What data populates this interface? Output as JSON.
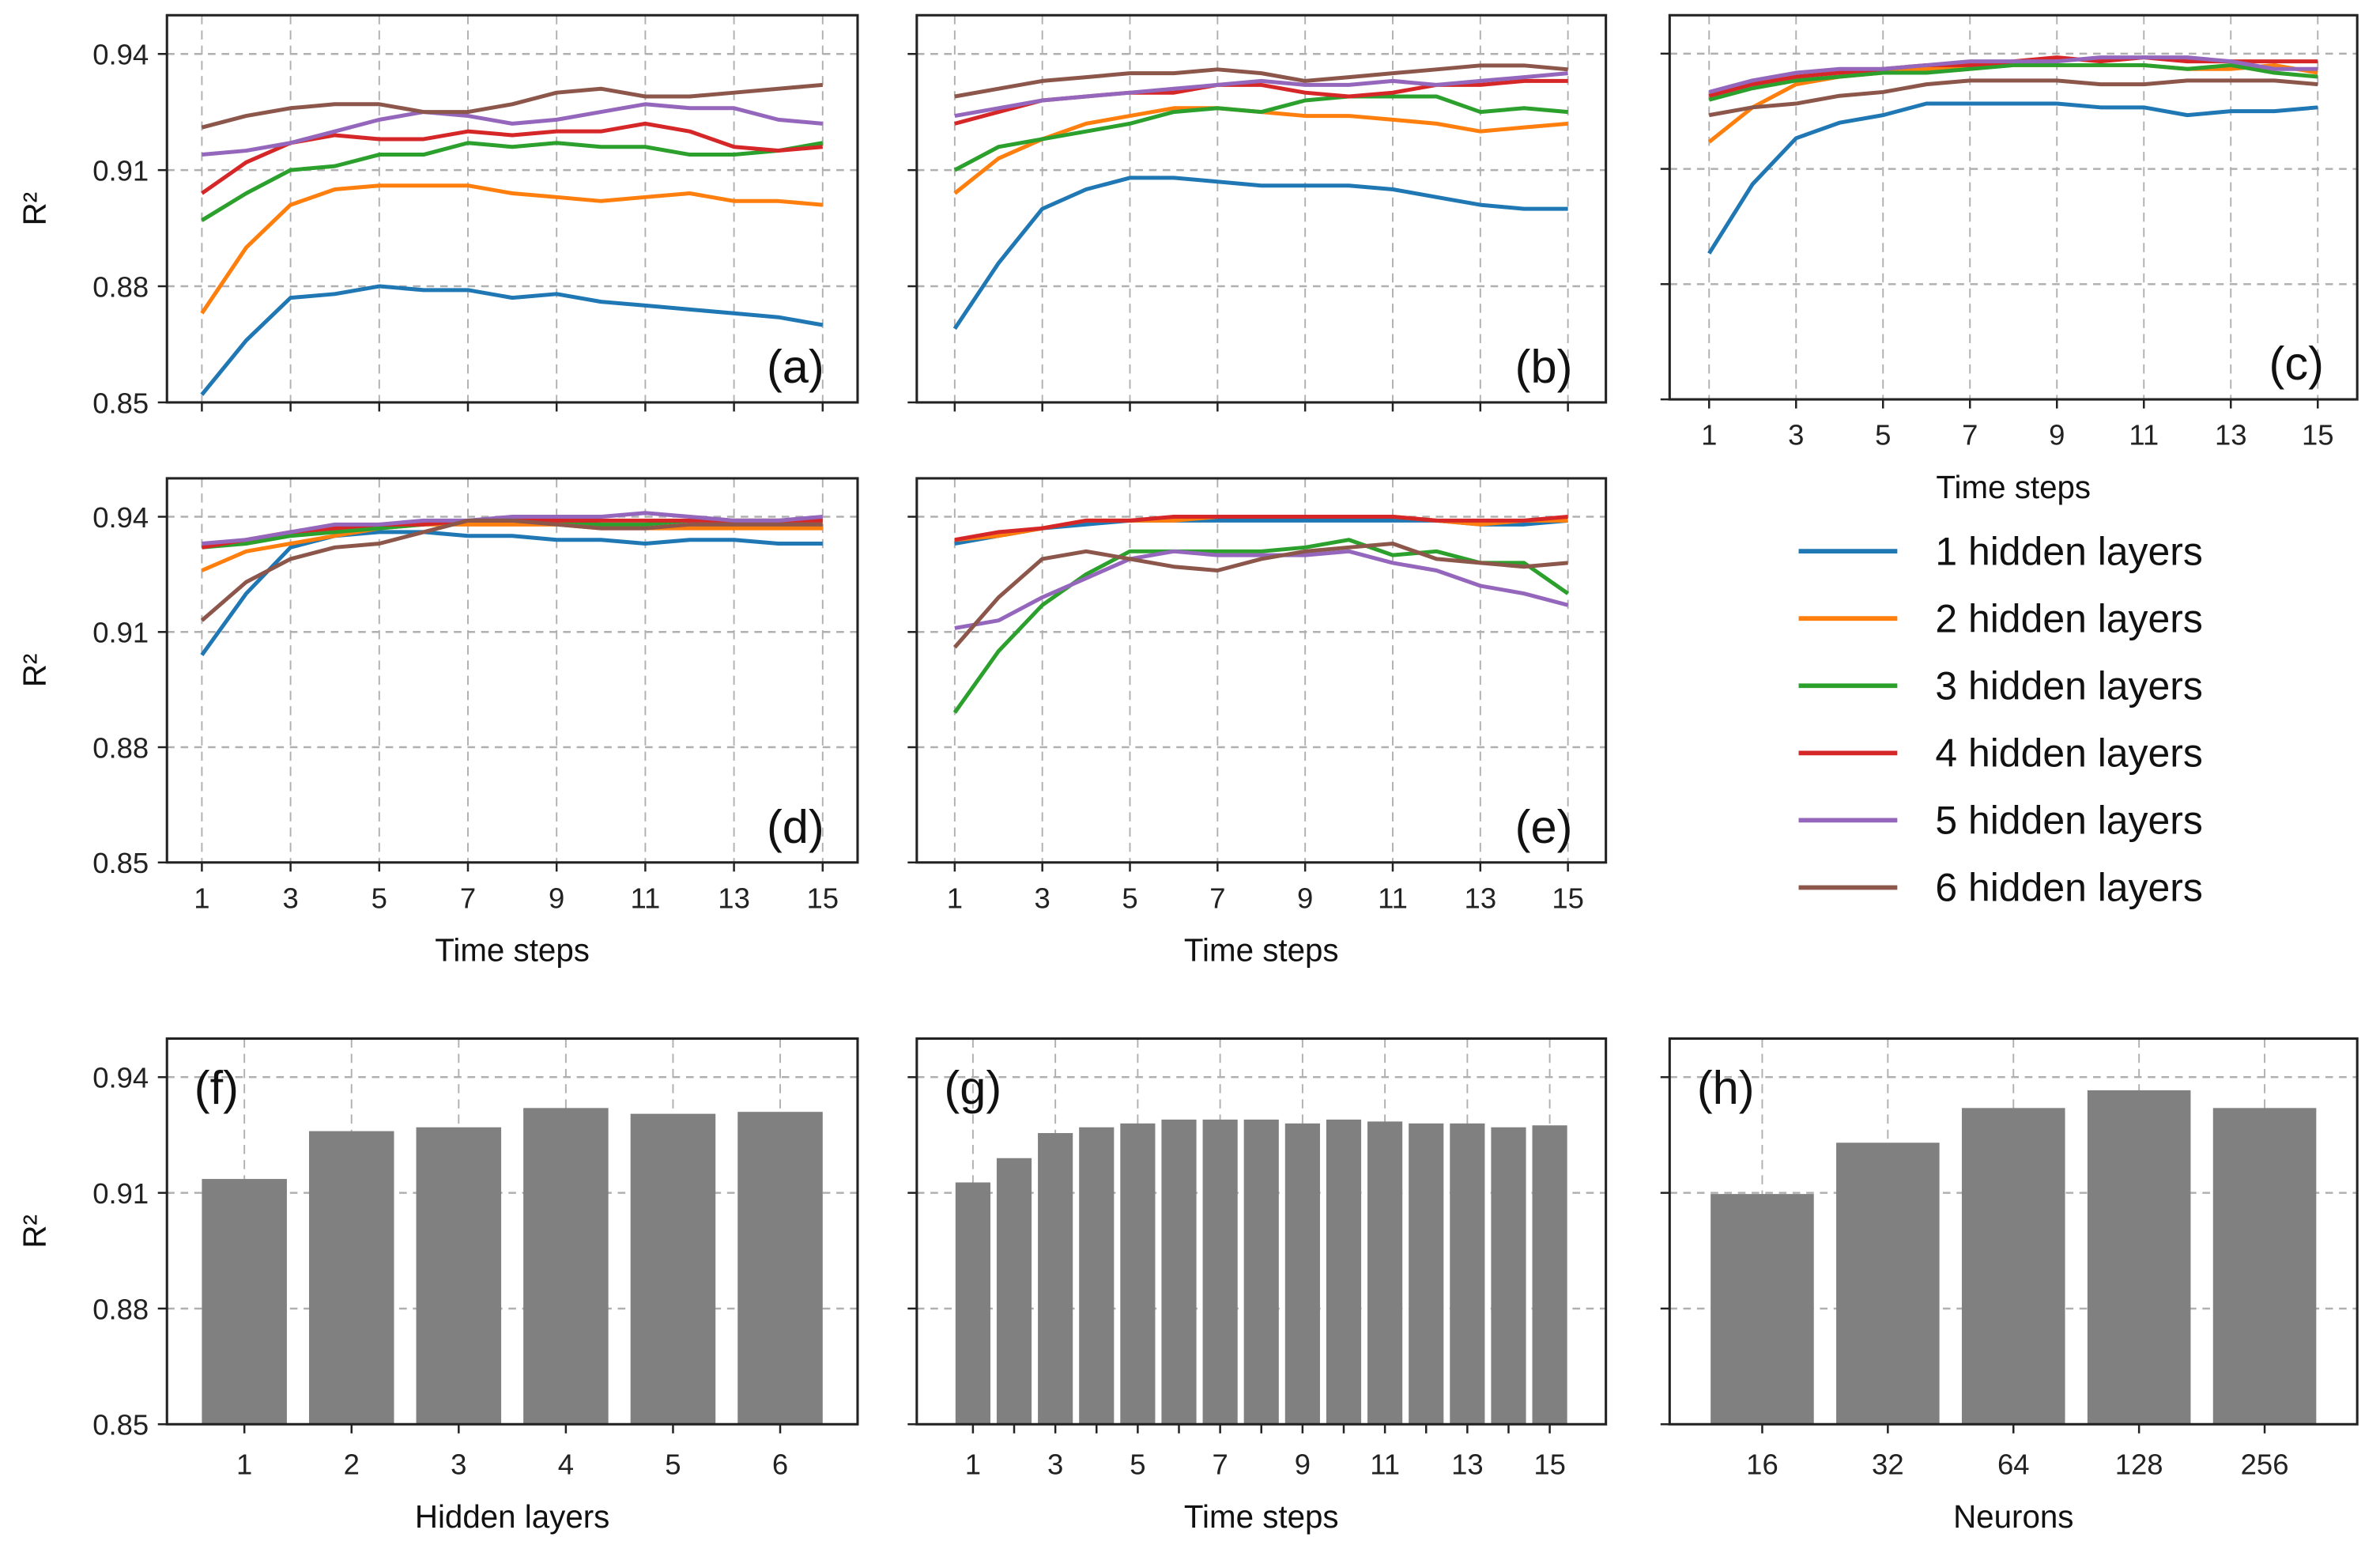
{
  "colors": {
    "1": "#1f77b4",
    "2": "#ff7f0e",
    "3": "#2ca02c",
    "4": "#d62728",
    "5": "#9467bd",
    "6": "#8c564b",
    "bar": "#808080"
  },
  "legend": [
    "1 hidden layers",
    "2 hidden layers",
    "3 hidden layers",
    "4 hidden layers",
    "5 hidden layers",
    "6 hidden layers"
  ],
  "chart_data": [
    {
      "id": "a",
      "type": "line",
      "label": "(a)",
      "ylabel": "R²",
      "xlabel": "",
      "ylim": [
        0.85,
        0.95
      ],
      "yticks": [
        "0.85",
        "0.88",
        "0.91",
        "0.94"
      ],
      "xticks": [
        "1",
        "3",
        "5",
        "7",
        "9",
        "11",
        "13",
        "15"
      ],
      "show_xticklabels": false,
      "grid": true,
      "x": [
        1,
        2,
        3,
        4,
        5,
        6,
        7,
        8,
        9,
        10,
        11,
        12,
        13,
        14,
        15
      ],
      "series": [
        {
          "name": "1 hidden layers",
          "values": [
            0.852,
            0.866,
            0.877,
            0.878,
            0.88,
            0.879,
            0.879,
            0.877,
            0.878,
            0.876,
            0.875,
            0.874,
            0.873,
            0.872,
            0.87
          ]
        },
        {
          "name": "2 hidden layers",
          "values": [
            0.873,
            0.89,
            0.901,
            0.905,
            0.906,
            0.906,
            0.906,
            0.904,
            0.903,
            0.902,
            0.903,
            0.904,
            0.902,
            0.902,
            0.901
          ]
        },
        {
          "name": "3 hidden layers",
          "values": [
            0.897,
            0.904,
            0.91,
            0.911,
            0.914,
            0.914,
            0.917,
            0.916,
            0.917,
            0.916,
            0.916,
            0.914,
            0.914,
            0.915,
            0.917
          ]
        },
        {
          "name": "4 hidden layers",
          "values": [
            0.904,
            0.912,
            0.917,
            0.919,
            0.918,
            0.918,
            0.92,
            0.919,
            0.92,
            0.92,
            0.922,
            0.92,
            0.916,
            0.915,
            0.916
          ]
        },
        {
          "name": "5 hidden layers",
          "values": [
            0.914,
            0.915,
            0.917,
            0.92,
            0.923,
            0.925,
            0.924,
            0.922,
            0.923,
            0.925,
            0.927,
            0.926,
            0.926,
            0.923,
            0.922
          ]
        },
        {
          "name": "6 hidden layers",
          "values": [
            0.921,
            0.924,
            0.926,
            0.927,
            0.927,
            0.925,
            0.925,
            0.927,
            0.93,
            0.931,
            0.929,
            0.929,
            0.93,
            0.931,
            0.932
          ]
        }
      ]
    },
    {
      "id": "b",
      "type": "line",
      "label": "(b)",
      "ylabel": "",
      "xlabel": "",
      "ylim": [
        0.85,
        0.95
      ],
      "yticks": [],
      "xticks": [
        "1",
        "3",
        "5",
        "7",
        "9",
        "11",
        "13",
        "15"
      ],
      "show_xticklabels": false,
      "grid": true,
      "x": [
        1,
        2,
        3,
        4,
        5,
        6,
        7,
        8,
        9,
        10,
        11,
        12,
        13,
        14,
        15
      ],
      "series": [
        {
          "name": "1 hidden layers",
          "values": [
            0.869,
            0.886,
            0.9,
            0.905,
            0.908,
            0.908,
            0.907,
            0.906,
            0.906,
            0.906,
            0.905,
            0.903,
            0.901,
            0.9,
            0.9
          ]
        },
        {
          "name": "2 hidden layers",
          "values": [
            0.904,
            0.913,
            0.918,
            0.922,
            0.924,
            0.926,
            0.926,
            0.925,
            0.924,
            0.924,
            0.923,
            0.922,
            0.92,
            0.921,
            0.922
          ]
        },
        {
          "name": "3 hidden layers",
          "values": [
            0.91,
            0.916,
            0.918,
            0.92,
            0.922,
            0.925,
            0.926,
            0.925,
            0.928,
            0.929,
            0.929,
            0.929,
            0.925,
            0.926,
            0.925
          ]
        },
        {
          "name": "4 hidden layers",
          "values": [
            0.922,
            0.925,
            0.928,
            0.929,
            0.93,
            0.93,
            0.932,
            0.932,
            0.93,
            0.929,
            0.93,
            0.932,
            0.932,
            0.933,
            0.933
          ]
        },
        {
          "name": "5 hidden layers",
          "values": [
            0.924,
            0.926,
            0.928,
            0.929,
            0.93,
            0.931,
            0.932,
            0.933,
            0.932,
            0.932,
            0.933,
            0.932,
            0.933,
            0.934,
            0.935
          ]
        },
        {
          "name": "6 hidden layers",
          "values": [
            0.929,
            0.931,
            0.933,
            0.934,
            0.935,
            0.935,
            0.936,
            0.935,
            0.933,
            0.934,
            0.935,
            0.936,
            0.937,
            0.937,
            0.936
          ]
        }
      ]
    },
    {
      "id": "c",
      "type": "line",
      "label": "(c)",
      "ylabel": "",
      "xlabel": "Time steps",
      "ylim": [
        0.85,
        0.95
      ],
      "yticks": [],
      "xticks": [
        "1",
        "3",
        "5",
        "7",
        "9",
        "11",
        "13",
        "15"
      ],
      "show_xticklabels": true,
      "grid": true,
      "x": [
        1,
        2,
        3,
        4,
        5,
        6,
        7,
        8,
        9,
        10,
        11,
        12,
        13,
        14,
        15
      ],
      "series": [
        {
          "name": "1 hidden layers",
          "values": [
            0.888,
            0.906,
            0.918,
            0.922,
            0.924,
            0.927,
            0.927,
            0.927,
            0.927,
            0.926,
            0.926,
            0.924,
            0.925,
            0.925,
            0.926
          ]
        },
        {
          "name": "2 hidden layers",
          "values": [
            0.917,
            0.926,
            0.932,
            0.934,
            0.935,
            0.936,
            0.937,
            0.937,
            0.937,
            0.937,
            0.937,
            0.936,
            0.936,
            0.937,
            0.935
          ]
        },
        {
          "name": "3 hidden layers",
          "values": [
            0.928,
            0.931,
            0.933,
            0.934,
            0.935,
            0.935,
            0.936,
            0.937,
            0.937,
            0.937,
            0.937,
            0.936,
            0.937,
            0.935,
            0.934
          ]
        },
        {
          "name": "4 hidden layers",
          "values": [
            0.929,
            0.932,
            0.934,
            0.935,
            0.936,
            0.937,
            0.937,
            0.938,
            0.939,
            0.938,
            0.939,
            0.938,
            0.938,
            0.938,
            0.938
          ]
        },
        {
          "name": "5 hidden layers",
          "values": [
            0.93,
            0.933,
            0.935,
            0.936,
            0.936,
            0.937,
            0.938,
            0.938,
            0.938,
            0.939,
            0.939,
            0.939,
            0.938,
            0.936,
            0.936
          ]
        },
        {
          "name": "6 hidden layers",
          "values": [
            0.924,
            0.926,
            0.927,
            0.929,
            0.93,
            0.932,
            0.933,
            0.933,
            0.933,
            0.932,
            0.932,
            0.933,
            0.933,
            0.933,
            0.932
          ]
        }
      ]
    },
    {
      "id": "d",
      "type": "line",
      "label": "(d)",
      "ylabel": "R²",
      "xlabel": "Time steps",
      "ylim": [
        0.85,
        0.95
      ],
      "yticks": [
        "0.85",
        "0.88",
        "0.91",
        "0.94"
      ],
      "xticks": [
        "1",
        "3",
        "5",
        "7",
        "9",
        "11",
        "13",
        "15"
      ],
      "show_xticklabels": true,
      "grid": true,
      "x": [
        1,
        2,
        3,
        4,
        5,
        6,
        7,
        8,
        9,
        10,
        11,
        12,
        13,
        14,
        15
      ],
      "series": [
        {
          "name": "1 hidden layers",
          "values": [
            0.904,
            0.92,
            0.932,
            0.935,
            0.936,
            0.936,
            0.935,
            0.935,
            0.934,
            0.934,
            0.933,
            0.934,
            0.934,
            0.933,
            0.933
          ]
        },
        {
          "name": "2 hidden layers",
          "values": [
            0.926,
            0.931,
            0.933,
            0.935,
            0.937,
            0.938,
            0.938,
            0.938,
            0.938,
            0.937,
            0.937,
            0.937,
            0.937,
            0.937,
            0.937
          ]
        },
        {
          "name": "3 hidden layers",
          "values": [
            0.932,
            0.933,
            0.935,
            0.936,
            0.937,
            0.938,
            0.939,
            0.939,
            0.939,
            0.938,
            0.938,
            0.939,
            0.939,
            0.939,
            0.939
          ]
        },
        {
          "name": "4 hidden layers",
          "values": [
            0.932,
            0.934,
            0.936,
            0.937,
            0.938,
            0.938,
            0.939,
            0.939,
            0.939,
            0.939,
            0.939,
            0.939,
            0.939,
            0.939,
            0.939
          ]
        },
        {
          "name": "5 hidden layers",
          "values": [
            0.933,
            0.934,
            0.936,
            0.938,
            0.938,
            0.939,
            0.939,
            0.94,
            0.94,
            0.94,
            0.941,
            0.94,
            0.939,
            0.939,
            0.94
          ]
        },
        {
          "name": "6 hidden layers",
          "values": [
            0.913,
            0.923,
            0.929,
            0.932,
            0.933,
            0.936,
            0.939,
            0.939,
            0.938,
            0.937,
            0.937,
            0.938,
            0.938,
            0.938,
            0.938
          ]
        }
      ]
    },
    {
      "id": "e",
      "type": "line",
      "label": "(e)",
      "ylabel": "",
      "xlabel": "Time steps",
      "ylim": [
        0.85,
        0.95
      ],
      "yticks": [],
      "xticks": [
        "1",
        "3",
        "5",
        "7",
        "9",
        "11",
        "13",
        "15"
      ],
      "show_xticklabels": true,
      "grid": true,
      "x": [
        1,
        2,
        3,
        4,
        5,
        6,
        7,
        8,
        9,
        10,
        11,
        12,
        13,
        14,
        15
      ],
      "series": [
        {
          "name": "1 hidden layers",
          "values": [
            0.933,
            0.935,
            0.937,
            0.938,
            0.939,
            0.939,
            0.939,
            0.939,
            0.939,
            0.939,
            0.939,
            0.939,
            0.938,
            0.938,
            0.939
          ]
        },
        {
          "name": "2 hidden layers",
          "values": [
            0.934,
            0.935,
            0.937,
            0.939,
            0.939,
            0.939,
            0.94,
            0.94,
            0.94,
            0.94,
            0.94,
            0.939,
            0.938,
            0.939,
            0.939
          ]
        },
        {
          "name": "3 hidden layers",
          "values": [
            0.889,
            0.905,
            0.917,
            0.925,
            0.931,
            0.931,
            0.931,
            0.931,
            0.932,
            0.934,
            0.93,
            0.931,
            0.928,
            0.928,
            0.92
          ]
        },
        {
          "name": "4 hidden layers",
          "values": [
            0.934,
            0.936,
            0.937,
            0.939,
            0.939,
            0.94,
            0.94,
            0.94,
            0.94,
            0.94,
            0.94,
            0.939,
            0.939,
            0.939,
            0.94
          ]
        },
        {
          "name": "5 hidden layers",
          "values": [
            0.911,
            0.913,
            0.919,
            0.924,
            0.929,
            0.931,
            0.93,
            0.93,
            0.93,
            0.931,
            0.928,
            0.926,
            0.922,
            0.92,
            0.917
          ]
        },
        {
          "name": "6 hidden layers",
          "values": [
            0.906,
            0.919,
            0.929,
            0.931,
            0.929,
            0.927,
            0.926,
            0.929,
            0.931,
            0.932,
            0.933,
            0.929,
            0.928,
            0.927,
            0.928
          ]
        }
      ]
    },
    {
      "id": "f",
      "type": "bar",
      "label": "(f)",
      "ylabel": "R²",
      "xlabel": "Hidden layers",
      "ylim": [
        0.85,
        0.95
      ],
      "yticks": [
        "0.85",
        "0.88",
        "0.91",
        "0.94"
      ],
      "grid": true,
      "categories": [
        "1",
        "2",
        "3",
        "4",
        "5",
        "6"
      ],
      "tick_labels": [
        "1",
        "2",
        "3",
        "4",
        "5",
        "6"
      ],
      "values": [
        0.9136,
        0.926,
        0.927,
        0.932,
        0.9305,
        0.931
      ]
    },
    {
      "id": "g",
      "type": "bar",
      "label": "(g)",
      "ylabel": "",
      "xlabel": "Time steps",
      "ylim": [
        0.85,
        0.95
      ],
      "yticks": [],
      "grid": true,
      "categories": [
        "1",
        "2",
        "3",
        "4",
        "5",
        "6",
        "7",
        "8",
        "9",
        "10",
        "11",
        "12",
        "13",
        "14",
        "15"
      ],
      "tick_labels": [
        "1",
        "",
        "3",
        "",
        "5",
        "",
        "7",
        "",
        "9",
        "",
        "11",
        "",
        "13",
        "",
        "15"
      ],
      "values": [
        0.9127,
        0.919,
        0.9255,
        0.927,
        0.928,
        0.929,
        0.929,
        0.929,
        0.928,
        0.929,
        0.9285,
        0.928,
        0.928,
        0.927,
        0.9275
      ]
    },
    {
      "id": "h",
      "type": "bar",
      "label": "(h)",
      "ylabel": "",
      "xlabel": "Neurons",
      "ylim": [
        0.85,
        0.95
      ],
      "yticks": [],
      "grid": true,
      "categories": [
        "16",
        "32",
        "64",
        "128",
        "256"
      ],
      "tick_labels": [
        "16",
        "32",
        "64",
        "128",
        "256"
      ],
      "values": [
        0.9097,
        0.923,
        0.932,
        0.9366,
        0.932
      ]
    }
  ]
}
